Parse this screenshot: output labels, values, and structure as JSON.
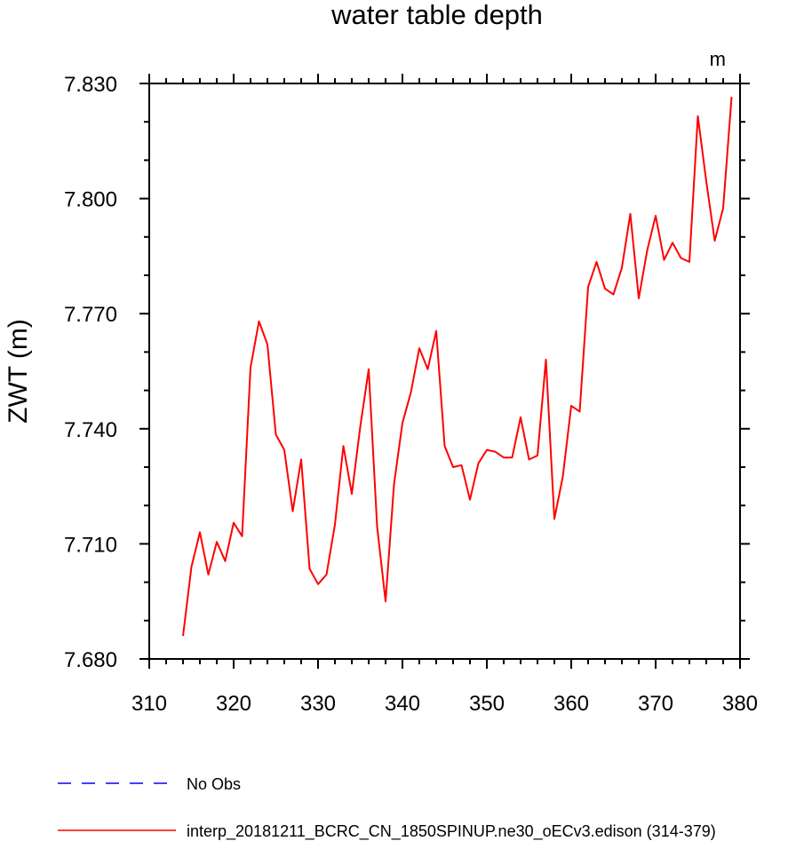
{
  "chart_data": {
    "type": "line",
    "title": "water table depth",
    "units": "m",
    "ylabel": "ZWT  (m)",
    "xlabel": "",
    "xlim": [
      310,
      380
    ],
    "ylim": [
      7.68,
      7.83
    ],
    "xticks": [
      310,
      320,
      330,
      340,
      350,
      360,
      370,
      380
    ],
    "xtick_labels": [
      "310",
      "320",
      "330",
      "340",
      "350",
      "360",
      "370",
      "380"
    ],
    "yticks": [
      7.68,
      7.71,
      7.74,
      7.77,
      7.8,
      7.83
    ],
    "ytick_labels": [
      "7.680",
      "7.710",
      "7.740",
      "7.770",
      "7.800",
      "7.830"
    ],
    "grid": false,
    "legend_position": "bottom-left",
    "series": [
      {
        "name": "No Obs",
        "color": "#0000ff",
        "style": "dashed",
        "x": [],
        "y": []
      },
      {
        "name": "interp_20181211_BCRC_CN_1850SPINUP.ne30_oECv3.edison (314-379)",
        "color": "#ff0000",
        "style": "solid",
        "x": [
          314,
          315,
          316,
          317,
          318,
          319,
          320,
          321,
          322,
          323,
          324,
          325,
          326,
          327,
          328,
          329,
          330,
          331,
          332,
          333,
          334,
          335,
          336,
          337,
          338,
          339,
          340,
          341,
          342,
          343,
          344,
          345,
          346,
          347,
          348,
          349,
          350,
          351,
          352,
          353,
          354,
          355,
          356,
          357,
          358,
          359,
          360,
          361,
          362,
          363,
          364,
          365,
          366,
          367,
          368,
          369,
          370,
          371,
          372,
          373,
          374,
          375,
          376,
          377,
          378,
          379
        ],
        "y": [
          7.686,
          7.704,
          7.713,
          7.702,
          7.7105,
          7.7055,
          7.7155,
          7.712,
          7.756,
          7.768,
          7.762,
          7.7385,
          7.7345,
          7.7185,
          7.732,
          7.7035,
          7.6995,
          7.702,
          7.715,
          7.7355,
          7.723,
          7.7405,
          7.7555,
          7.7145,
          7.695,
          7.7255,
          7.7415,
          7.7495,
          7.761,
          7.7555,
          7.7655,
          7.7355,
          7.73,
          7.7305,
          7.7215,
          7.731,
          7.7345,
          7.734,
          7.7325,
          7.7325,
          7.743,
          7.732,
          7.733,
          7.758,
          7.7165,
          7.7275,
          7.746,
          7.7445,
          7.777,
          7.7835,
          7.7765,
          7.775,
          7.782,
          7.796,
          7.774,
          7.7865,
          7.7955,
          7.784,
          7.7885,
          7.7845,
          7.7835,
          7.8215,
          7.8045,
          7.789,
          7.7975,
          7.8265
        ]
      }
    ]
  }
}
